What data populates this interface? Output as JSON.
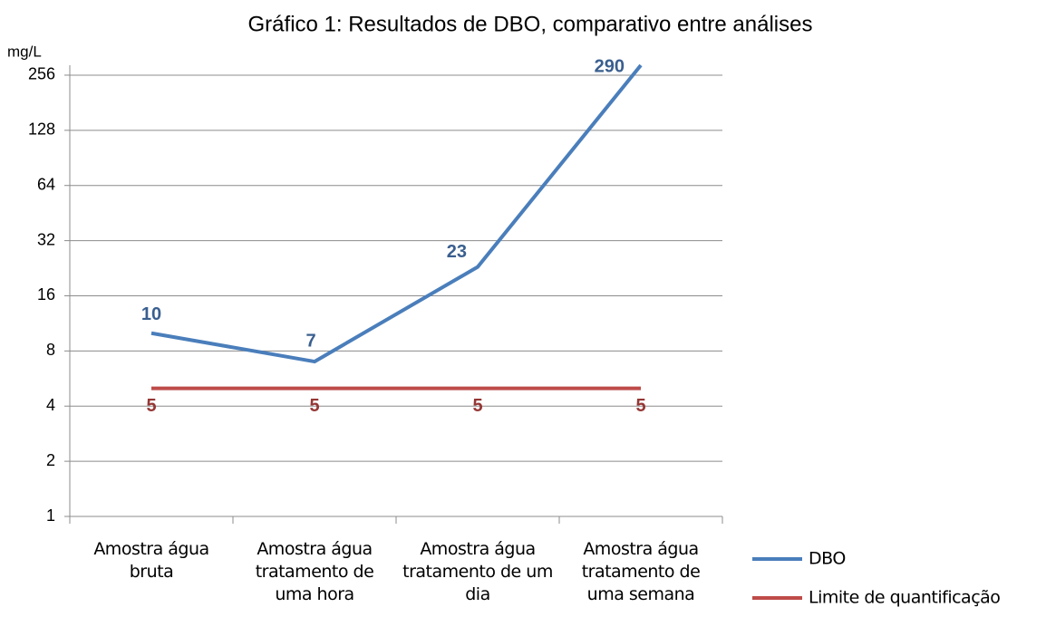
{
  "chart_data": {
    "type": "line",
    "title": "Gráfico 1: Resultados de DBO, comparativo entre análises",
    "y_label": "mg/L",
    "categories": [
      "Amostra água bruta",
      "Amostra água tratamento de uma hora",
      "Amostra água tratamento de um dia",
      "Amostra água tratamento de uma semana"
    ],
    "series": [
      {
        "name": "DBO",
        "color": "#4a7ebb",
        "label_color": "#3a5f8f",
        "values": [
          10,
          7,
          23,
          290
        ]
      },
      {
        "name": "Limite de quantificação",
        "color": "#be4b48",
        "label_color": "#953735",
        "values": [
          5,
          5,
          5,
          5
        ]
      }
    ],
    "y_scale": "log",
    "ylim": [
      1,
      290
    ],
    "yticks": [
      1,
      2,
      4,
      8,
      16,
      32,
      64,
      128,
      256
    ],
    "grid": true,
    "legend": "right",
    "data_labels": true
  }
}
